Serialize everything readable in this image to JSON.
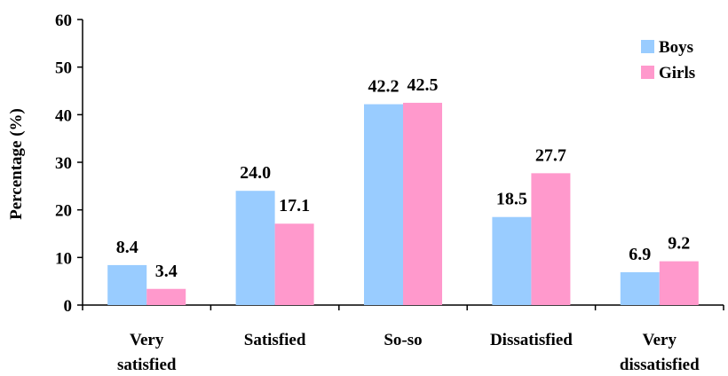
{
  "chart_data": {
    "type": "bar",
    "title": "",
    "xlabel": "",
    "ylabel": "Percentage (%)",
    "ylim": [
      0,
      60
    ],
    "yticks": [
      "0",
      "10",
      "20",
      "30",
      "40",
      "50",
      "60"
    ],
    "categories": [
      [
        "Very",
        "satisfied"
      ],
      [
        "Satisfied"
      ],
      [
        "So-so"
      ],
      [
        "Dissatisfied"
      ],
      [
        "Very",
        "dissatisfied"
      ]
    ],
    "series": [
      {
        "name": "Boys",
        "color": "#99ccff",
        "values": [
          8.4,
          24.0,
          42.2,
          18.5,
          6.9
        ],
        "labels": [
          "8.4",
          "24.0",
          "42.2",
          "18.5",
          "6.9"
        ]
      },
      {
        "name": "Girls",
        "color": "#ff99cc",
        "values": [
          3.4,
          17.1,
          42.5,
          27.7,
          9.2
        ],
        "labels": [
          "3.4",
          "17.1",
          "42.5",
          "27.7",
          "9.2"
        ]
      }
    ],
    "legend": "top-right",
    "grid": false
  }
}
